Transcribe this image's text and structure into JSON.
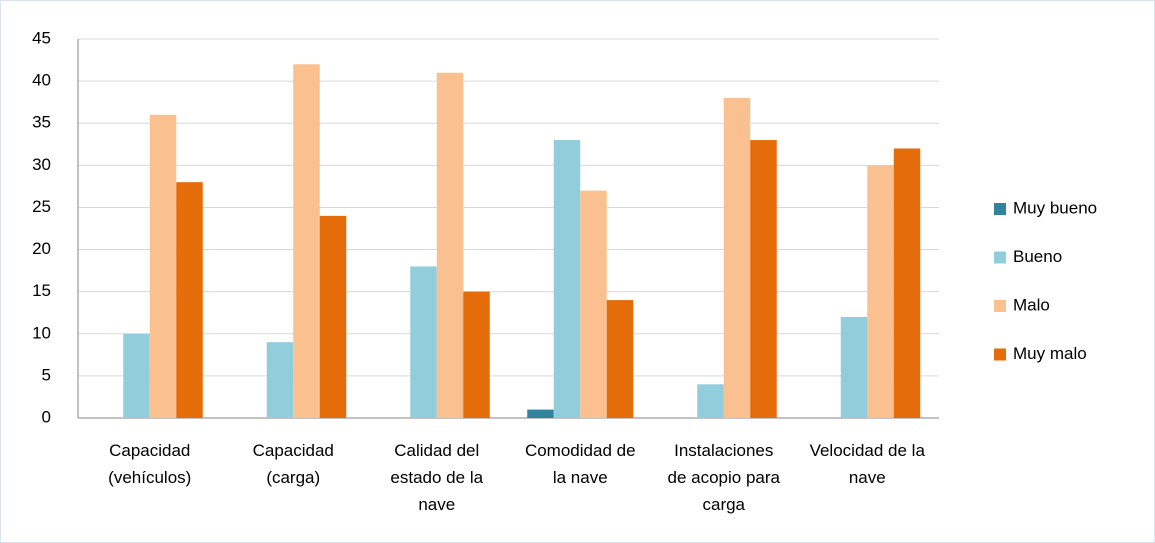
{
  "chart_data": {
    "type": "bar",
    "categories": [
      "Capacidad (vehículos)",
      "Capacidad (carga)",
      "Calidad del estado de la nave",
      "Comodidad de la nave",
      "Instalaciones de acopio para carga",
      "Velocidad de la nave"
    ],
    "series": [
      {
        "name": "Muy bueno",
        "color": "#31849b",
        "values": [
          0,
          0,
          0,
          1,
          0,
          0
        ]
      },
      {
        "name": "Bueno",
        "color": "#92cddc",
        "values": [
          10,
          9,
          18,
          33,
          4,
          12
        ]
      },
      {
        "name": "Malo",
        "color": "#fac090",
        "values": [
          36,
          42,
          41,
          27,
          38,
          30
        ]
      },
      {
        "name": "Muy malo",
        "color": "#e46c0a",
        "values": [
          28,
          24,
          15,
          14,
          33,
          32
        ]
      }
    ],
    "ylim": [
      0,
      45
    ],
    "yticks": [
      0,
      5,
      10,
      15,
      20,
      25,
      30,
      35,
      40,
      45
    ],
    "grid": true,
    "legend": "right"
  }
}
